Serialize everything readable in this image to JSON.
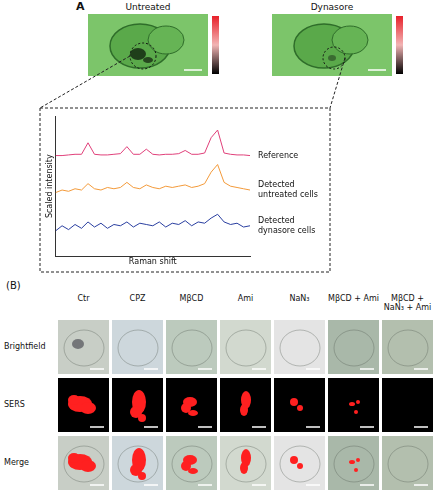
{
  "panel_a": {
    "label": "A",
    "images": [
      {
        "title": "Untreated"
      },
      {
        "title": "Dynasore"
      }
    ]
  },
  "chart_data": {
    "type": "line",
    "x_label": "Raman shift",
    "y_label": "Scaled intensity",
    "x": [
      600,
      640,
      680,
      720,
      760,
      800,
      840,
      880,
      920,
      960,
      1000,
      1040,
      1080,
      1120,
      1160,
      1200,
      1240,
      1280,
      1320,
      1360,
      1400,
      1440,
      1480,
      1520,
      1560,
      1600,
      1640,
      1680,
      1720,
      1760,
      1800
    ],
    "series": [
      {
        "name": "Reference",
        "color": "#e0407a",
        "values": [
          7.9,
          7.9,
          7.95,
          8.0,
          8.0,
          8.9,
          8.0,
          7.95,
          7.95,
          8.0,
          8.05,
          8.6,
          8.0,
          8.0,
          8.4,
          8.0,
          7.95,
          8.0,
          8.0,
          8.05,
          8.3,
          8.0,
          8.0,
          8.1,
          9.3,
          9.9,
          8.1,
          8.0,
          7.95,
          7.95,
          7.9
        ]
      },
      {
        "name": "Detected untreated cells",
        "color": "#f39a3a",
        "values": [
          5.0,
          5.2,
          5.1,
          5.3,
          5.2,
          5.7,
          5.3,
          5.2,
          5.4,
          5.3,
          5.4,
          5.8,
          5.4,
          5.3,
          5.6,
          5.4,
          5.3,
          5.5,
          5.4,
          5.5,
          5.6,
          5.4,
          5.5,
          5.7,
          6.6,
          7.2,
          5.8,
          5.5,
          5.4,
          5.3,
          5.2
        ]
      },
      {
        "name": "Detected dynasore cells",
        "color": "#2a3fa0",
        "values": [
          2.0,
          2.4,
          2.1,
          2.5,
          2.2,
          2.7,
          2.3,
          2.6,
          2.2,
          2.5,
          2.4,
          2.7,
          2.3,
          2.6,
          2.5,
          2.4,
          2.7,
          2.3,
          2.6,
          2.5,
          2.8,
          2.4,
          2.7,
          2.6,
          3.0,
          3.3,
          2.7,
          2.5,
          2.6,
          2.3,
          2.4
        ]
      }
    ],
    "xlim": [
      600,
      1800
    ],
    "ylim": [
      0,
      11
    ],
    "tick_labels": false,
    "grid": false
  },
  "panel_b": {
    "label": "(B)",
    "columns": [
      "Ctr",
      "CPZ",
      "MβCD",
      "Ami",
      "NaN₃",
      "MβCD + Ami",
      "MβCD + NaN₃ + Ami"
    ],
    "rows": [
      "Brightfield",
      "SERS",
      "Merge"
    ]
  }
}
